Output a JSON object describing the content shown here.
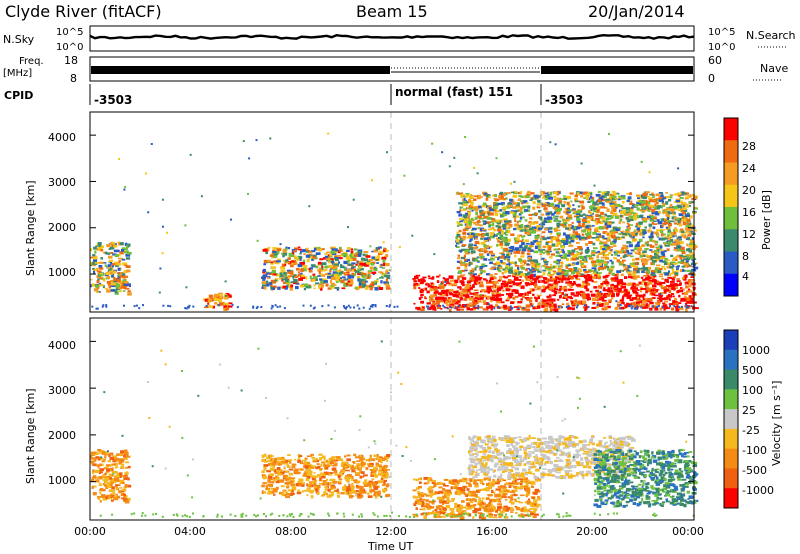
{
  "header": {
    "station": "Clyde River (fitACF)",
    "beam": "Beam 15",
    "date": "20/Jan/2014"
  },
  "top_panels": {
    "nsky": {
      "label": "N.Sky",
      "right_label": "N.Search",
      "y_ticks_left": [
        "10^5",
        "10^0"
      ],
      "y_ticks_right": [
        "10^5",
        "10^0"
      ]
    },
    "freq": {
      "label_line1": "Freq.",
      "label_line2": "[MHz]",
      "y_ticks_left": [
        "18",
        "8"
      ],
      "right_label": "Nave",
      "y_ticks_right": [
        "60",
        "0"
      ]
    },
    "cpid": {
      "label": "CPID",
      "segments": [
        {
          "text": "-3503",
          "start_hour": 0
        },
        {
          "text": "normal (fast) 151",
          "start_hour": 12
        },
        {
          "text": "-3503",
          "start_hour": 18
        }
      ]
    }
  },
  "power_panel": {
    "ylabel": "Slant Range [km]",
    "y_ticks": [
      "1000",
      "2000",
      "3000",
      "4000"
    ],
    "colorbar_label": "Power [dB]",
    "colorbar_ticks": [
      "4",
      "8",
      "12",
      "16",
      "20",
      "24",
      "28"
    ],
    "colors": [
      "#0000ff",
      "#2a5bc4",
      "#3c8a6e",
      "#6fbe3c",
      "#f5c518",
      "#f59a23",
      "#f06a10",
      "#ff0000"
    ]
  },
  "velocity_panel": {
    "ylabel": "Slant Range [km]",
    "y_ticks": [
      "1000",
      "2000",
      "3000",
      "4000"
    ],
    "colorbar_label": "Velocity [m s⁻¹]",
    "colorbar_ticks": [
      "1000",
      "500",
      "100",
      "25",
      "-25",
      "-100",
      "-500",
      "-1000"
    ],
    "colors": [
      "#1b3fb8",
      "#2a72c0",
      "#3a8a6a",
      "#6cc240",
      "#c8c8c8",
      "#f5b81e",
      "#f58a14",
      "#f06010",
      "#ff0000"
    ]
  },
  "x_axis": {
    "ticks": [
      "00:00",
      "04:00",
      "08:00",
      "12:00",
      "16:00",
      "20:00",
      "00:00"
    ],
    "label": "Time UT"
  },
  "chart_data": {
    "type": "heatmap",
    "title": "Clyde River (fitACF)",
    "subtitle": "Beam 15",
    "xlabel": "Time UT",
    "ylabel": "Slant Range [km]",
    "xlim_hours": [
      0,
      24
    ],
    "ylim_km": [
      180,
      4500
    ],
    "cpid_boundaries_hours": [
      12,
      18
    ],
    "power_regions": [
      {
        "t0": 0.0,
        "t1": 1.5,
        "r0": 600,
        "r1": 1700,
        "level": "mixed_green_orange"
      },
      {
        "t0": 4.5,
        "t1": 5.5,
        "r0": 250,
        "r1": 600,
        "level": "orange_red"
      },
      {
        "t0": 6.8,
        "t1": 11.8,
        "r0": 700,
        "r1": 1600,
        "level": "orange_red_core"
      },
      {
        "t0": 12.8,
        "t1": 24.0,
        "r0": 250,
        "r1": 1000,
        "level": "red_strong"
      },
      {
        "t0": 14.5,
        "t1": 24.0,
        "r0": 1000,
        "r1": 2800,
        "level": "mixed_orange_green"
      }
    ],
    "velocity_regions": [
      {
        "t0": 0.0,
        "t1": 1.5,
        "r0": 600,
        "r1": 1700,
        "level": "orange_negative"
      },
      {
        "t0": 6.8,
        "t1": 11.8,
        "r0": 700,
        "r1": 1600,
        "level": "orange_negative"
      },
      {
        "t0": 12.8,
        "t1": 17.8,
        "r0": 250,
        "r1": 1100,
        "level": "orange_negative"
      },
      {
        "t0": 15.0,
        "t1": 21.5,
        "r0": 1100,
        "r1": 2000,
        "level": "grey_near_zero"
      },
      {
        "t0": 20.0,
        "t1": 24.0,
        "r0": 500,
        "r1": 1700,
        "level": "green_positive"
      }
    ]
  }
}
